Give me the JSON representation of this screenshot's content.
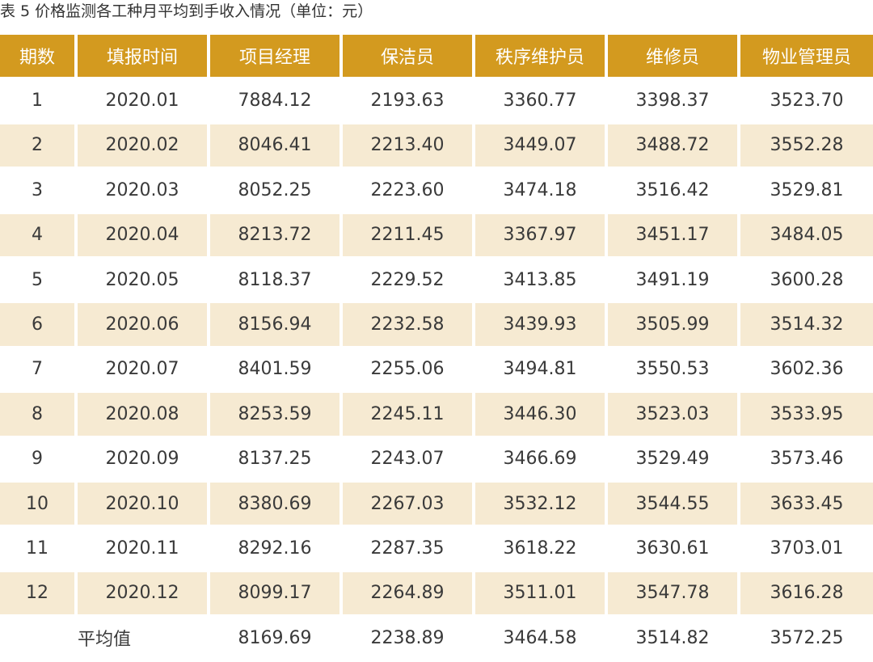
{
  "caption": "表 5   价格监测各工种月平均到手收入情况（单位：元）",
  "headers": [
    "期数",
    "填报时间",
    "项目经理",
    "保洁员",
    "秩序维护员",
    "维修员",
    "物业管理员"
  ],
  "rows": [
    [
      "1",
      "2020.01",
      "7884.12",
      "2193.63",
      "3360.77",
      "3398.37",
      "3523.70"
    ],
    [
      "2",
      "2020.02",
      "8046.41",
      "2213.40",
      "3449.07",
      "3488.72",
      "3552.28"
    ],
    [
      "3",
      "2020.03",
      "8052.25",
      "2223.60",
      "3474.18",
      "3516.42",
      "3529.81"
    ],
    [
      "4",
      "2020.04",
      "8213.72",
      "2211.45",
      "3367.97",
      "3451.17",
      "3484.05"
    ],
    [
      "5",
      "2020.05",
      "8118.37",
      "2229.52",
      "3413.85",
      "3491.19",
      "3600.28"
    ],
    [
      "6",
      "2020.06",
      "8156.94",
      "2232.58",
      "3439.93",
      "3505.99",
      "3514.32"
    ],
    [
      "7",
      "2020.07",
      "8401.59",
      "2255.06",
      "3494.81",
      "3550.53",
      "3602.36"
    ],
    [
      "8",
      "2020.08",
      "8253.59",
      "2245.11",
      "3446.30",
      "3523.03",
      "3533.95"
    ],
    [
      "9",
      "2020.09",
      "8137.25",
      "2243.07",
      "3466.69",
      "3529.49",
      "3573.46"
    ],
    [
      "10",
      "2020.10",
      "8380.69",
      "2267.03",
      "3532.12",
      "3544.55",
      "3633.45"
    ],
    [
      "11",
      "2020.11",
      "8292.16",
      "2287.35",
      "3618.22",
      "3630.61",
      "3703.01"
    ],
    [
      "12",
      "2020.12",
      "8099.17",
      "2264.89",
      "3511.01",
      "3547.78",
      "3616.28"
    ]
  ],
  "average": {
    "label": "平均值",
    "values": [
      "8169.69",
      "2238.89",
      "3464.58",
      "3514.82",
      "3572.25"
    ]
  },
  "colors": {
    "header_bg": "#d39a1f",
    "header_text": "#ffffff",
    "alt_row_bg": "#f6ead2",
    "text": "#3a3a3a"
  }
}
